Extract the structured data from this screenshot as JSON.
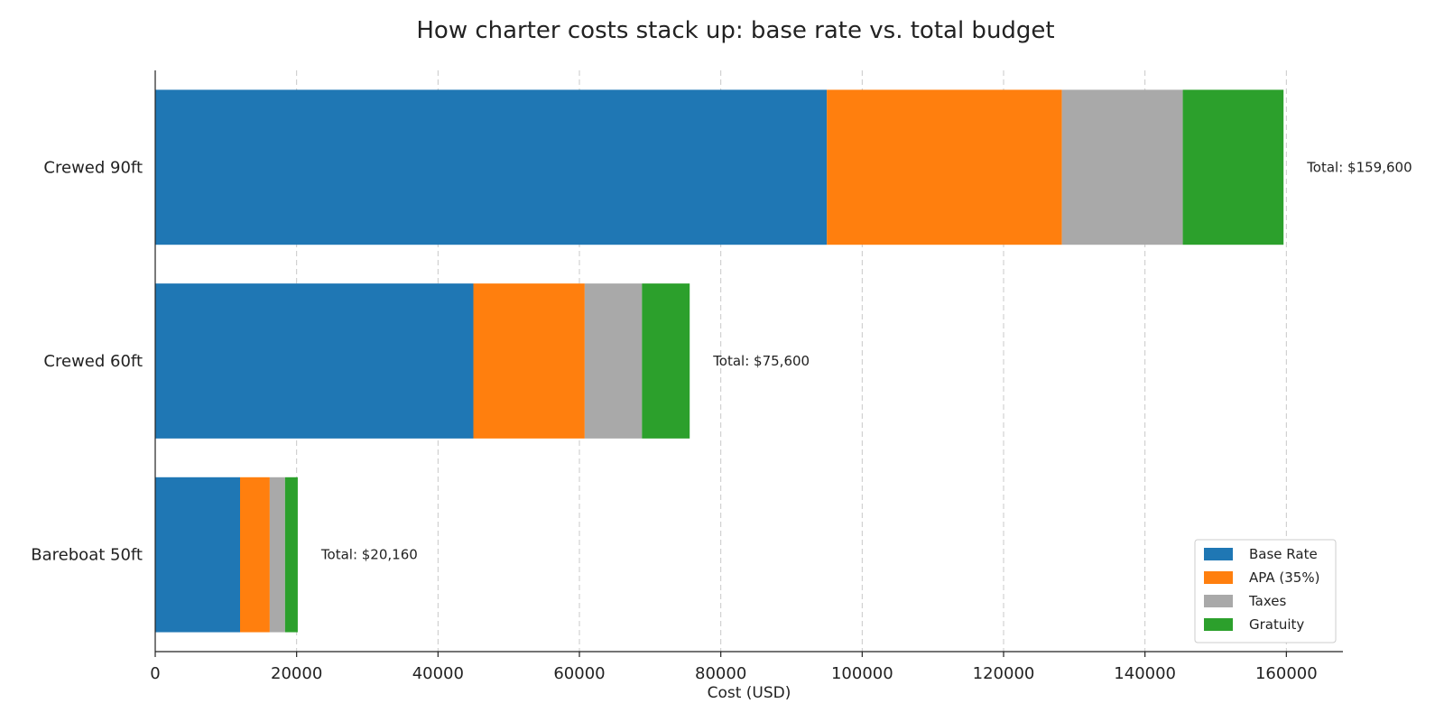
{
  "chart_data": {
    "type": "bar",
    "orientation": "horizontal",
    "stacked": true,
    "title": "How charter costs stack up: base rate vs. total budget",
    "xlabel": "Cost (USD)",
    "ylabel": "",
    "xlim": [
      0,
      168000
    ],
    "xticks": [
      0,
      20000,
      40000,
      60000,
      80000,
      100000,
      120000,
      140000,
      160000
    ],
    "xtick_labels": [
      "0",
      "20000",
      "40000",
      "60000",
      "80000",
      "100000",
      "120000",
      "140000",
      "160000"
    ],
    "grid": "x-dashed",
    "legend_position": "bottom-right",
    "categories": [
      "Bareboat 50ft",
      "Crewed 60ft",
      "Crewed 90ft"
    ],
    "series": [
      {
        "name": "Base Rate",
        "color": "#1f77b4",
        "values": [
          12000,
          45000,
          95000
        ]
      },
      {
        "name": "APA (35%)",
        "color": "#ff7f0e",
        "values": [
          4200,
          15750,
          33250
        ]
      },
      {
        "name": "Taxes",
        "color": "#a9a9a9",
        "values": [
          2160,
          8100,
          17100
        ]
      },
      {
        "name": "Gratuity",
        "color": "#2ca02c",
        "values": [
          1800,
          6750,
          14250
        ]
      }
    ],
    "totals": [
      20160,
      75600,
      159600
    ],
    "total_labels": [
      "Total: $20,160",
      "Total: $75,600",
      "Total: $159,600"
    ]
  }
}
